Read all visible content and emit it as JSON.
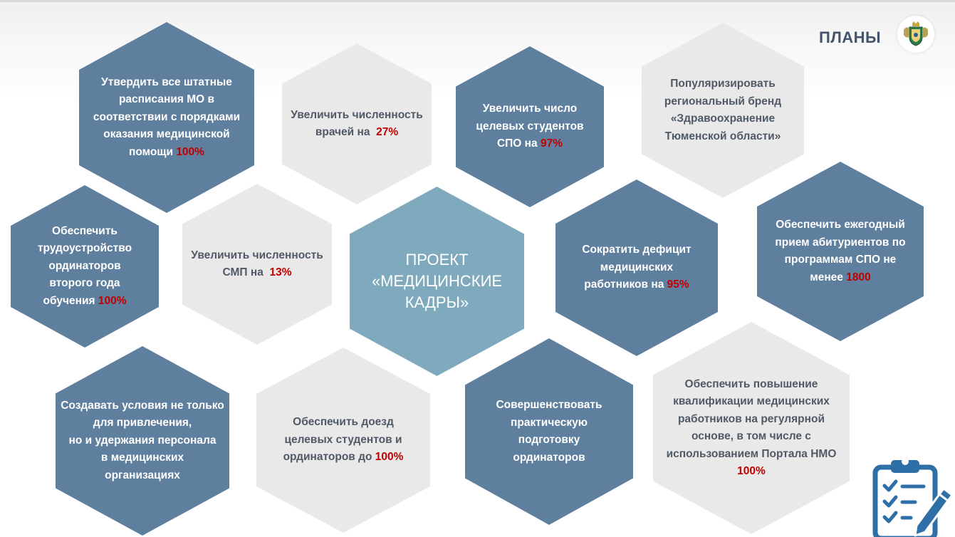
{
  "header": {
    "title": "ПЛАНЫ"
  },
  "center": {
    "lines": [
      "ПРОЕКТ",
      "«МЕДИЦИНСКИЕ",
      "КАДРЫ»"
    ]
  },
  "colors": {
    "dark": "#5f7f9e",
    "light": "#e9e9e9",
    "center": "#7fa9bd",
    "highlight": "#c00000",
    "title": "#44546a"
  },
  "icons": {
    "emblem": "coat-of-arms-icon",
    "checklist": "clipboard-checklist-icon"
  },
  "items": [
    {
      "lines": [
        "Утвердить все штатные",
        "расписания МО в",
        "соответствии с порядками",
        "оказания медицинской",
        "помощи"
      ],
      "value": "100%"
    },
    {
      "lines": [
        "Увеличить численность",
        "врачей на"
      ],
      "value": "27%"
    },
    {
      "lines": [
        "Увеличить число",
        "целевых студентов",
        "СПО на"
      ],
      "value": "97%"
    },
    {
      "lines": [
        "Популяризировать",
        "региональный бренд",
        "«Здравоохранение",
        "Тюменской области»"
      ],
      "value": ""
    },
    {
      "lines": [
        "Обеспечить",
        "трудоустройство",
        "ординаторов",
        "второго года",
        "обучения"
      ],
      "value": "100%"
    },
    {
      "lines": [
        "Увеличить численность",
        "СМП на"
      ],
      "value": "13%"
    },
    {
      "lines": [
        "Сократить дефицит",
        "медицинских",
        "работников на"
      ],
      "value": "95%"
    },
    {
      "lines": [
        "Обеспечить ежегодный",
        "прием абитуриентов по",
        "программам СПО не",
        "менее"
      ],
      "value": "1800"
    },
    {
      "lines": [
        "Создавать условия не только",
        "для привлечения,",
        "но и удержания персонала",
        "в медицинских",
        "организациях"
      ],
      "value": ""
    },
    {
      "lines": [
        "Обеспечить доезд",
        "целевых студентов и",
        "ординаторов до"
      ],
      "value": "100%"
    },
    {
      "lines": [
        "Совершенствовать",
        "практическую",
        "подготовку",
        "ординаторов"
      ],
      "value": ""
    },
    {
      "lines": [
        "Обеспечить повышение",
        "квалификации медицинских",
        "работников на регулярной",
        "основе, в том числе с",
        "использованием Портала НМО"
      ],
      "value": "100%"
    }
  ]
}
